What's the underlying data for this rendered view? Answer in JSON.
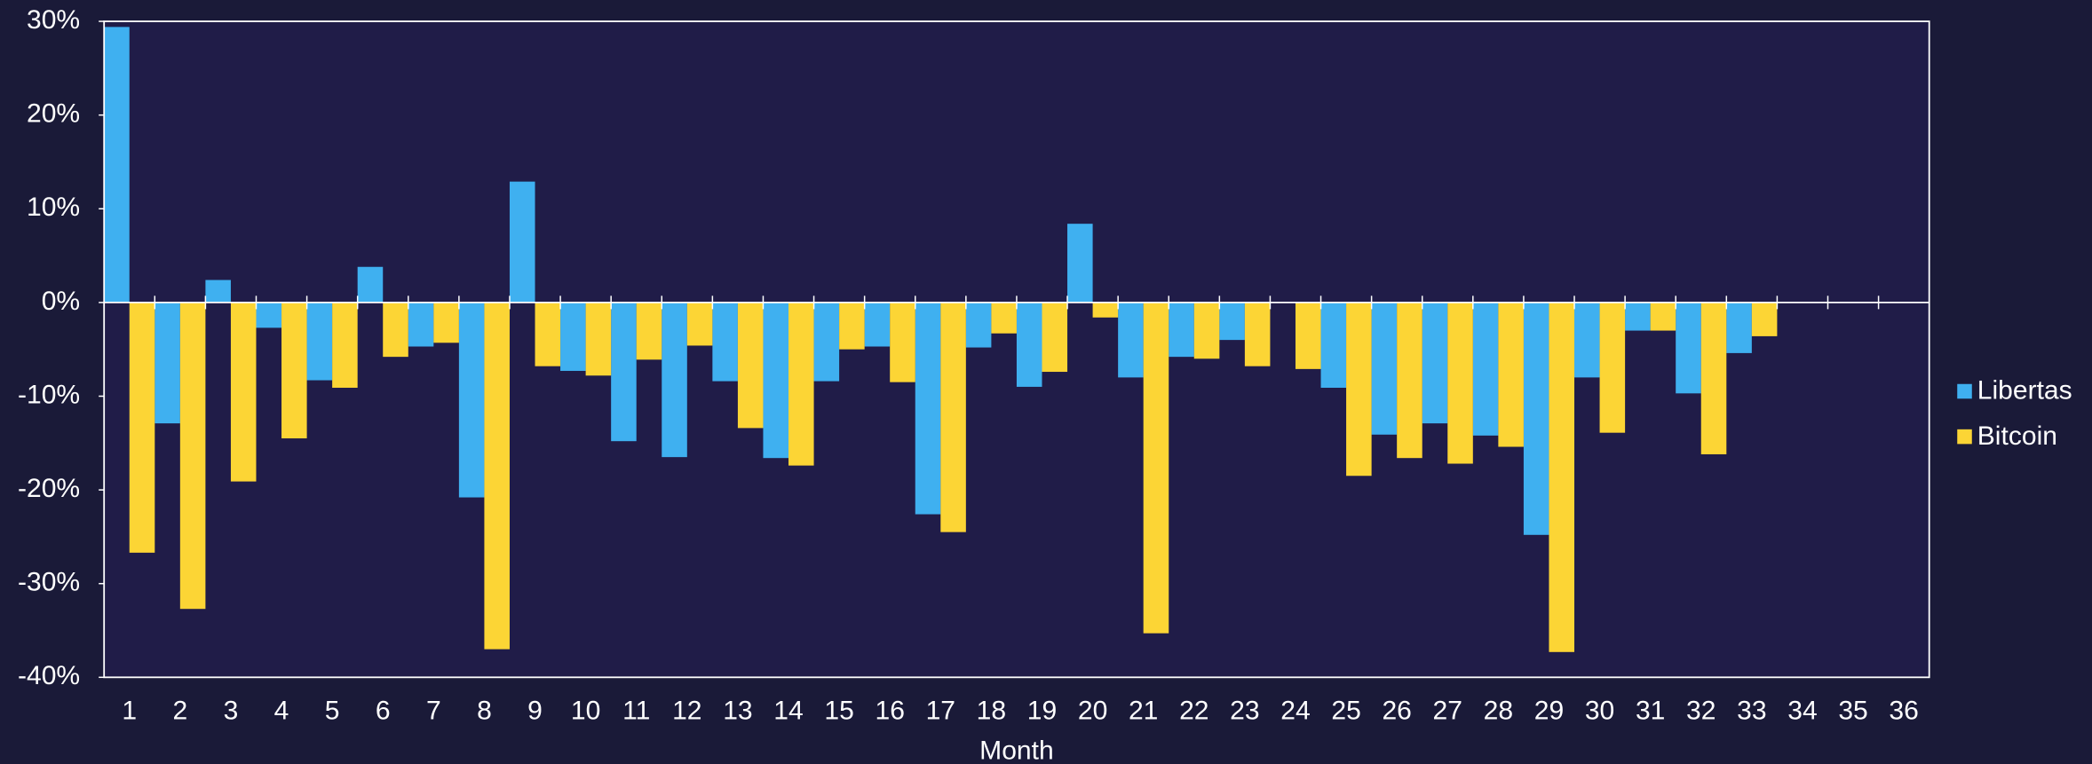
{
  "chart_data": {
    "type": "bar",
    "x_label": "Month",
    "categories": [
      "1",
      "2",
      "3",
      "4",
      "5",
      "6",
      "7",
      "8",
      "9",
      "10",
      "11",
      "12",
      "13",
      "14",
      "15",
      "16",
      "17",
      "18",
      "19",
      "20",
      "21",
      "22",
      "23",
      "24",
      "25",
      "26",
      "27",
      "28",
      "29",
      "30",
      "31",
      "32",
      "33",
      "34",
      "35",
      "36"
    ],
    "series": [
      {
        "name": "Libertas",
        "color": "#3fb0f0",
        "values": [
          29.4,
          -12.9,
          2.4,
          -2.7,
          -8.3,
          3.8,
          -4.7,
          -20.8,
          12.9,
          -7.3,
          -14.8,
          -16.5,
          -8.4,
          -16.6,
          -8.4,
          -4.7,
          -22.6,
          -4.8,
          -9.0,
          8.4,
          -8.0,
          -5.8,
          -4.0,
          0,
          -9.1,
          -14.1,
          -12.9,
          -14.2,
          -24.8,
          -8.0,
          -3.0,
          -9.7,
          -5.4,
          null,
          null,
          null
        ]
      },
      {
        "name": "Bitcoin",
        "color": "#fcd535",
        "values": [
          -26.7,
          -32.7,
          -19.1,
          -14.5,
          -9.1,
          -5.8,
          -4.3,
          -37.0,
          -6.8,
          -7.8,
          -6.1,
          -4.6,
          -13.4,
          -17.4,
          -5.0,
          -8.5,
          -24.5,
          -3.3,
          -7.4,
          -1.6,
          -35.3,
          -6.0,
          -6.8,
          -7.1,
          -18.5,
          -16.6,
          -17.2,
          -15.4,
          -37.3,
          -13.9,
          -3.0,
          -16.2,
          -3.6,
          null,
          null,
          null
        ]
      }
    ],
    "ylim": [
      -40,
      30
    ],
    "yticks": [
      {
        "value": -40,
        "label": "-40%"
      },
      {
        "value": -30,
        "label": "-30%"
      },
      {
        "value": -20,
        "label": "-20%"
      },
      {
        "value": -10,
        "label": "-10%"
      },
      {
        "value": 0,
        "label": "0%"
      },
      {
        "value": 10,
        "label": "10%"
      },
      {
        "value": 20,
        "label": "20%"
      },
      {
        "value": 30,
        "label": "30%"
      }
    ],
    "legend": "right"
  }
}
